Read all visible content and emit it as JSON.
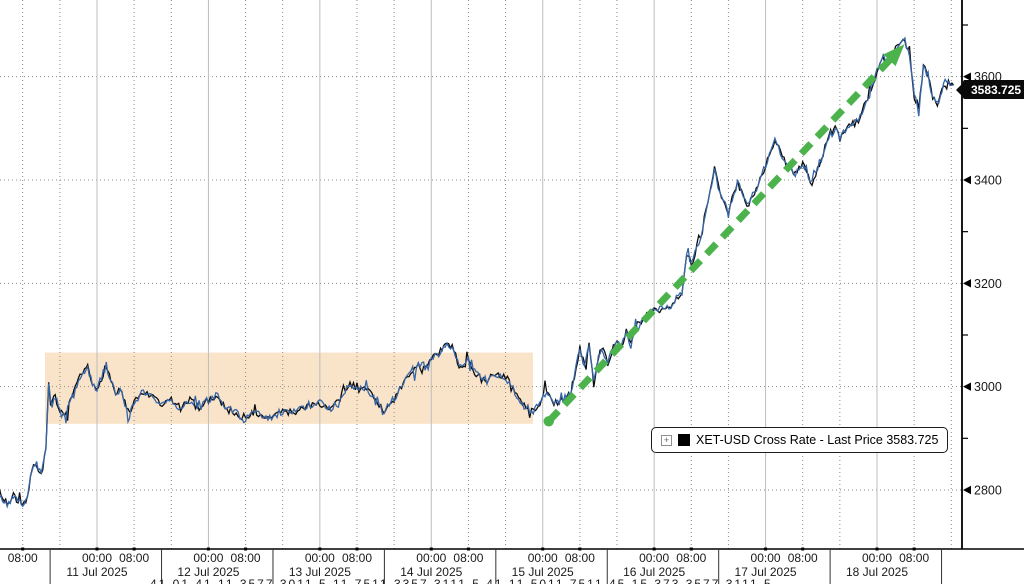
{
  "chart_data": {
    "type": "line",
    "title": "",
    "x_axis": {
      "start_hour": 3,
      "end_hour": 208.5,
      "hours_epoch": "hours since 2025-07-10 00:00",
      "grid_every_hours": 8,
      "time_labels": [
        "00:00",
        "08:00"
      ],
      "leading_time_label": {
        "label": "08:00",
        "hour": 8
      },
      "day_labels": [
        {
          "label": "11 Jul 2025",
          "start_hour": 24
        },
        {
          "label": "12 Jul 2025",
          "start_hour": 48
        },
        {
          "label": "13 Jul 2025",
          "start_hour": 72
        },
        {
          "label": "14 Jul 2025",
          "start_hour": 96
        },
        {
          "label": "15 Jul 2025",
          "start_hour": 120
        },
        {
          "label": "16 Jul 2025",
          "start_hour": 144
        },
        {
          "label": "17 Jul 2025",
          "start_hour": 168
        },
        {
          "label": "18 Jul 2025",
          "start_hour": 192
        }
      ],
      "section_separator_hours": [
        13.9,
        37.9,
        61.9,
        85.9,
        109.9,
        133.9,
        157.9,
        181.9,
        205.9
      ]
    },
    "y_axis": {
      "side": "right",
      "major_ticks": [
        2800,
        3000,
        3200,
        3400,
        3600
      ],
      "minor_ticks": [
        2900,
        3100,
        3300,
        3500,
        3700
      ],
      "top_price": 3748,
      "bottom_price": 2694
    },
    "series": [
      {
        "name": "XET-USD Cross Rate - Last Price",
        "last_price": 3583.725,
        "line_colors": [
          "#0d0d0d",
          "#3565a8"
        ],
        "points": [
          [
            3,
            2790
          ],
          [
            4,
            2782
          ],
          [
            5,
            2774
          ],
          [
            6,
            2788
          ],
          [
            7,
            2778
          ],
          [
            8,
            2770
          ],
          [
            9,
            2790
          ],
          [
            10,
            2840
          ],
          [
            11,
            2848
          ],
          [
            12,
            2830
          ],
          [
            13,
            2876
          ],
          [
            13.6,
            3008
          ],
          [
            14,
            2958
          ],
          [
            15,
            2984
          ],
          [
            16,
            2950
          ],
          [
            17,
            2942
          ],
          [
            18,
            2964
          ],
          [
            19,
            2986
          ],
          [
            20,
            3012
          ],
          [
            21,
            3028
          ],
          [
            22,
            3036
          ],
          [
            23,
            3002
          ],
          [
            24,
            2994
          ],
          [
            25,
            3018
          ],
          [
            26,
            3042
          ],
          [
            27,
            3012
          ],
          [
            28,
            2986
          ],
          [
            29,
            2996
          ],
          [
            30,
            2968
          ],
          [
            31,
            2945
          ],
          [
            32,
            2968
          ],
          [
            34,
            2990
          ],
          [
            36,
            2978
          ],
          [
            38,
            2965
          ],
          [
            40,
            2975
          ],
          [
            42,
            2958
          ],
          [
            44,
            2974
          ],
          [
            46,
            2960
          ],
          [
            48,
            2974
          ],
          [
            50,
            2984
          ],
          [
            52,
            2955
          ],
          [
            54,
            2950
          ],
          [
            56,
            2934
          ],
          [
            57,
            2949
          ],
          [
            58,
            2951
          ],
          [
            60,
            2936
          ],
          [
            62,
            2944
          ],
          [
            64,
            2952
          ],
          [
            66,
            2950
          ],
          [
            68,
            2956
          ],
          [
            70,
            2966
          ],
          [
            72,
            2968
          ],
          [
            74,
            2955
          ],
          [
            76,
            2972
          ],
          [
            78.5,
            3007
          ],
          [
            80,
            2996
          ],
          [
            82,
            2996
          ],
          [
            84,
            2980
          ],
          [
            85.5,
            2952
          ],
          [
            88,
            2976
          ],
          [
            90,
            3004
          ],
          [
            92,
            3034
          ],
          [
            94,
            3044
          ],
          [
            95,
            3034
          ],
          [
            96,
            3052
          ],
          [
            98,
            3068
          ],
          [
            99,
            3080
          ],
          [
            100.5,
            3078
          ],
          [
            102,
            3040
          ],
          [
            103,
            3038
          ],
          [
            104,
            3056
          ],
          [
            105,
            3032
          ],
          [
            106,
            3022
          ],
          [
            108,
            3012
          ],
          [
            110,
            3026
          ],
          [
            112,
            3020
          ],
          [
            114,
            2990
          ],
          [
            116,
            2962
          ],
          [
            118,
            2950
          ],
          [
            119,
            2962
          ],
          [
            120.5,
            2988
          ],
          [
            121.5,
            2980
          ],
          [
            122,
            2968
          ],
          [
            124,
            2972
          ],
          [
            126,
            2985
          ],
          [
            128,
            3075
          ],
          [
            129,
            3040
          ],
          [
            130,
            3080
          ],
          [
            131,
            3005
          ],
          [
            132,
            3060
          ],
          [
            133,
            3072
          ],
          [
            134,
            3046
          ],
          [
            136,
            3094
          ],
          [
            137,
            3076
          ],
          [
            138,
            3106
          ],
          [
            139,
            3080
          ],
          [
            140,
            3110
          ],
          [
            142,
            3134
          ],
          [
            144,
            3150
          ],
          [
            146,
            3150
          ],
          [
            148,
            3160
          ],
          [
            150,
            3185
          ],
          [
            151,
            3256
          ],
          [
            152,
            3240
          ],
          [
            154,
            3290
          ],
          [
            156,
            3375
          ],
          [
            157,
            3420
          ],
          [
            158.5,
            3366
          ],
          [
            160,
            3340
          ],
          [
            162,
            3394
          ],
          [
            164,
            3350
          ],
          [
            166,
            3384
          ],
          [
            168,
            3428
          ],
          [
            170,
            3475
          ],
          [
            172,
            3440
          ],
          [
            174,
            3410
          ],
          [
            176,
            3430
          ],
          [
            178,
            3392
          ],
          [
            180,
            3440
          ],
          [
            182,
            3494
          ],
          [
            183,
            3498
          ],
          [
            184,
            3480
          ],
          [
            186,
            3505
          ],
          [
            188,
            3512
          ],
          [
            190,
            3560
          ],
          [
            192,
            3610
          ],
          [
            193,
            3640
          ],
          [
            194,
            3625
          ],
          [
            196,
            3655
          ],
          [
            198,
            3670
          ],
          [
            199,
            3640
          ],
          [
            200,
            3560
          ],
          [
            201,
            3542
          ],
          [
            202,
            3618
          ],
          [
            203,
            3605
          ],
          [
            204,
            3555
          ],
          [
            205,
            3548
          ],
          [
            206,
            3575
          ],
          [
            207,
            3595
          ],
          [
            208.5,
            3583.7
          ]
        ]
      }
    ],
    "annotations": {
      "highlight_band": {
        "from_hour": 12.8,
        "to_hour": 117.9,
        "price_low": 2928,
        "price_high": 3066,
        "color": "#f9e4ca"
      },
      "trend_arrow": {
        "from_hour": 121.3,
        "from_price": 2933,
        "to_hour": 196.6,
        "to_price": 3650,
        "color": "#4cb34c"
      },
      "last_price_label": "3583.725"
    },
    "legend": {
      "window_icon": "+",
      "swatch_color": "#000000",
      "label": "XET-USD Cross Rate - Last Price 3583.725"
    },
    "grid": {
      "on": true,
      "dotted_color": "#8a8a8a",
      "day_line_color": "#bdbdbd"
    }
  },
  "bottom_clipped_text": "41 01 41 11 3577 3011 5 11 7511 3357 3111 5 41 11 5011 7511 45 15 373 3577 3111 5"
}
